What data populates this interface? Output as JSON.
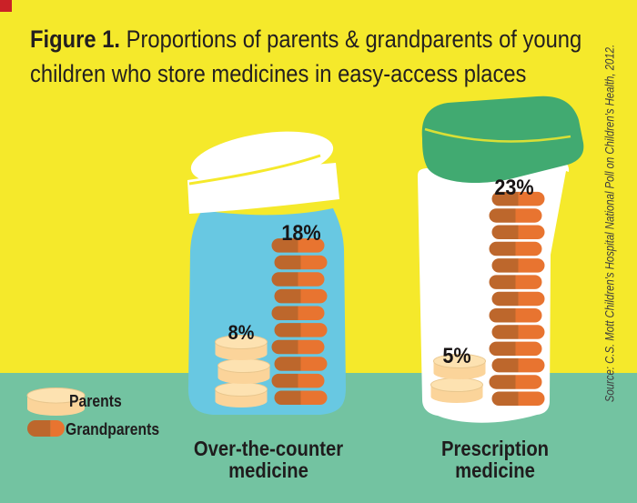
{
  "header": {
    "figure_label": "Figure 1.",
    "title_rest_line1": " Proportions of parents & grandparents of young",
    "title_line2": "children who store medicines in easy-access places"
  },
  "source": {
    "text": "Source: C.S. Mott Children's Hospital National Poll on Children's Health, 2012."
  },
  "chart_data": {
    "type": "bar",
    "subtype": "pictogram-pill-stacks",
    "title": "Figure 1. Proportions of parents & grandparents of young children who store medicines in easy-access places",
    "legend_entries": [
      "Parents",
      "Grandparents"
    ],
    "categories": [
      "Over-the-counter medicine",
      "Prescription medicine"
    ],
    "series": [
      {
        "name": "Parents",
        "values": [
          8,
          5
        ]
      },
      {
        "name": "Grandparents",
        "values": [
          18,
          23
        ]
      }
    ],
    "groups": [
      {
        "id": "otc",
        "caption_line1": "Over-the-counter",
        "caption_line2": "medicine",
        "series": [
          {
            "name": "Parents",
            "value_pct": 8,
            "label": "8%",
            "pill_type": "tablet",
            "pills_shown": 3
          },
          {
            "name": "Grandparents",
            "value_pct": 18,
            "label": "18%",
            "pill_type": "capsule",
            "pills_shown": 10
          }
        ]
      },
      {
        "id": "rx",
        "caption_line1": "Prescription",
        "caption_line2": "medicine",
        "series": [
          {
            "name": "Parents",
            "value_pct": 5,
            "label": "5%",
            "pill_type": "tablet",
            "pills_shown": 2
          },
          {
            "name": "Grandparents",
            "value_pct": 23,
            "label": "23%",
            "pill_type": "capsule",
            "pills_shown": 13
          }
        ]
      }
    ],
    "layout": {
      "legend_position": "bottom-left",
      "grid": false,
      "value_labels_above_stacks": true
    },
    "colors": {
      "background_yellow": "#f5e92b",
      "ground_teal": "#73c3a1",
      "otc_bottle_blue": "#68c8e2",
      "rx_cap_green": "#41aa71",
      "bottle_white": "#ffffff",
      "capsule_bright": "#e87430",
      "capsule_dark": "#bd672c",
      "tablet_cream": "#fbd49a",
      "tablet_top": "#fde2b1",
      "text_dark": "#231f20",
      "accent_red": "#ca2127"
    }
  }
}
